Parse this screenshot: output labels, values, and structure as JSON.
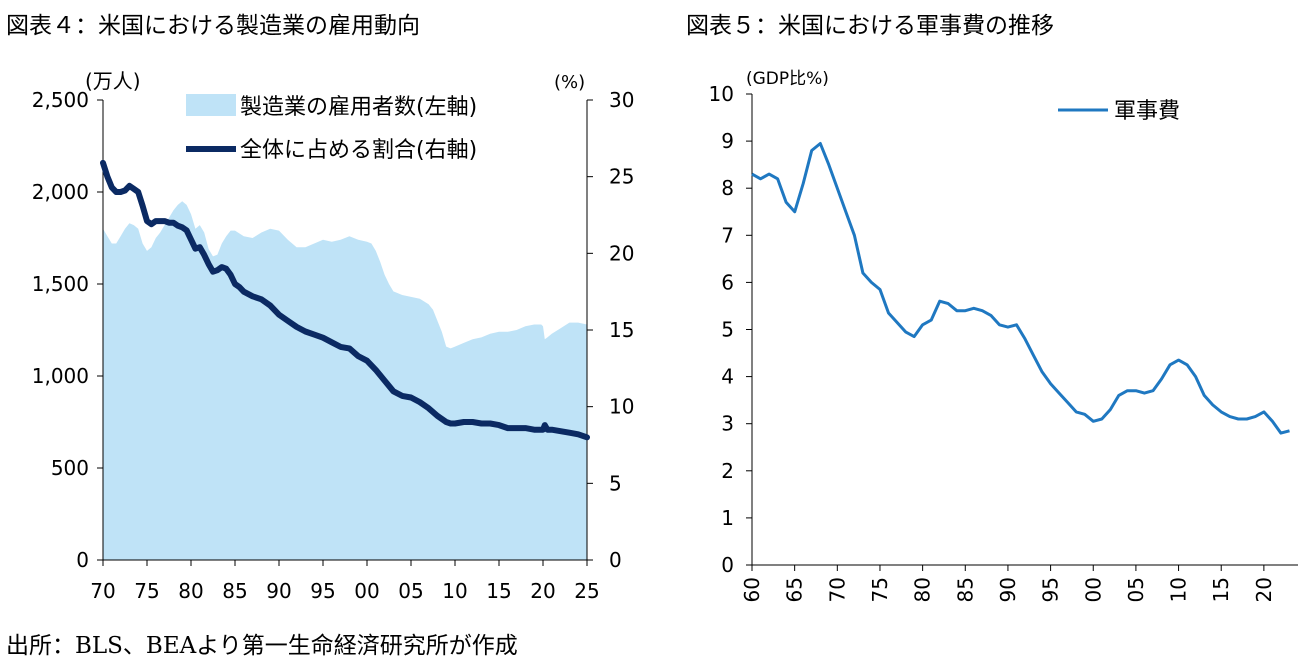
{
  "source_note": "出所：BLS、BEAより第一生命経済研究所が作成",
  "colors": {
    "employment_area": "#bfe3f7",
    "share_line": "#0b2a63",
    "military_line": "#1f78c1"
  },
  "chart_data": [
    {
      "id": "fig4",
      "type": "area+line",
      "title": "図表４：米国における製造業の雇用動向",
      "x_tick_labels": [
        "70",
        "75",
        "80",
        "85",
        "90",
        "95",
        "00",
        "05",
        "10",
        "15",
        "20",
        "25"
      ],
      "x_range": [
        1970,
        2025
      ],
      "y_left": {
        "label": "(万人)",
        "range": [
          0,
          2500
        ],
        "tick_labels": [
          "0",
          "500",
          "1,000",
          "1,500",
          "2,000",
          "2,500"
        ],
        "ticks": [
          0,
          500,
          1000,
          1500,
          2000,
          2500
        ]
      },
      "y_right": {
        "label": "(%)",
        "range": [
          0,
          30
        ],
        "tick_labels": [
          "0",
          "5",
          "10",
          "15",
          "20",
          "25",
          "30"
        ],
        "ticks": [
          0,
          5,
          10,
          15,
          20,
          25,
          30
        ]
      },
      "legend": [
        "製造業の雇用者数(左軸)",
        "全体に占める割合(右軸)"
      ],
      "series": [
        {
          "name": "製造業の雇用者数(左軸)",
          "axis": "left",
          "style": "area",
          "x": [
            1970,
            1970.5,
            1971,
            1971.5,
            1972,
            1972.5,
            1973,
            1973.5,
            1974,
            1974.5,
            1975,
            1975.5,
            1976,
            1976.5,
            1977,
            1977.5,
            1978,
            1978.5,
            1979,
            1979.5,
            1980,
            1980.5,
            1981,
            1981.5,
            1982,
            1982.5,
            1983,
            1983.5,
            1984,
            1984.5,
            1985,
            1986,
            1987,
            1988,
            1989,
            1990,
            1991,
            1992,
            1993,
            1994,
            1995,
            1996,
            1997,
            1998,
            1999,
            2000,
            2000.5,
            2001,
            2001.5,
            2002,
            2002.5,
            2003,
            2004,
            2005,
            2006,
            2007,
            2007.5,
            2008,
            2008.5,
            2009,
            2009.5,
            2010,
            2011,
            2012,
            2013,
            2014,
            2015,
            2016,
            2017,
            2018,
            2019,
            2019.8,
            2020,
            2020.2,
            2020.5,
            2021,
            2022,
            2023,
            2024,
            2025
          ],
          "y": [
            1800,
            1760,
            1720,
            1720,
            1760,
            1800,
            1830,
            1820,
            1800,
            1720,
            1680,
            1700,
            1750,
            1780,
            1820,
            1860,
            1900,
            1930,
            1950,
            1930,
            1880,
            1800,
            1820,
            1780,
            1690,
            1650,
            1660,
            1720,
            1760,
            1790,
            1790,
            1760,
            1750,
            1780,
            1800,
            1790,
            1740,
            1700,
            1700,
            1720,
            1740,
            1730,
            1740,
            1760,
            1740,
            1730,
            1720,
            1680,
            1620,
            1550,
            1500,
            1460,
            1440,
            1430,
            1420,
            1390,
            1360,
            1300,
            1240,
            1160,
            1150,
            1160,
            1180,
            1200,
            1210,
            1230,
            1240,
            1240,
            1250,
            1270,
            1280,
            1280,
            1270,
            1200,
            1210,
            1230,
            1260,
            1290,
            1290,
            1280
          ]
        },
        {
          "name": "全体に占める割合(右軸)",
          "axis": "right",
          "style": "line",
          "x": [
            1970,
            1970.5,
            1971,
            1971.5,
            1972,
            1972.5,
            1973,
            1973.5,
            1974,
            1974.5,
            1975,
            1975.5,
            1976,
            1976.5,
            1977,
            1977.5,
            1978,
            1978.5,
            1979,
            1979.5,
            1980,
            1980.5,
            1981,
            1981.5,
            1982,
            1982.5,
            1983,
            1983.5,
            1984,
            1984.5,
            1985,
            1985.5,
            1986,
            1987,
            1988,
            1989,
            1990,
            1991,
            1992,
            1993,
            1994,
            1995,
            1996,
            1997,
            1998,
            1999,
            2000,
            2001,
            2002,
            2003,
            2004,
            2005,
            2006,
            2007,
            2008,
            2009,
            2009.5,
            2010,
            2011,
            2012,
            2013,
            2014,
            2015,
            2016,
            2017,
            2018,
            2019,
            2020,
            2020.2,
            2020.5,
            2021,
            2022,
            2023,
            2024,
            2025
          ],
          "y": [
            25.9,
            25.0,
            24.3,
            24.0,
            24.0,
            24.1,
            24.4,
            24.2,
            24.0,
            23.1,
            22.1,
            21.9,
            22.1,
            22.1,
            22.1,
            22.0,
            22.0,
            21.8,
            21.7,
            21.5,
            20.9,
            20.3,
            20.4,
            19.9,
            19.3,
            18.8,
            18.9,
            19.1,
            19.0,
            18.6,
            18.0,
            17.8,
            17.5,
            17.2,
            17.0,
            16.6,
            16.0,
            15.6,
            15.2,
            14.9,
            14.7,
            14.5,
            14.2,
            13.9,
            13.8,
            13.3,
            13.0,
            12.4,
            11.7,
            11.0,
            10.7,
            10.6,
            10.3,
            9.9,
            9.4,
            9.0,
            8.9,
            8.9,
            9.0,
            9.0,
            8.9,
            8.9,
            8.8,
            8.6,
            8.6,
            8.6,
            8.5,
            8.5,
            8.8,
            8.5,
            8.5,
            8.4,
            8.3,
            8.2,
            8.0
          ]
        }
      ]
    },
    {
      "id": "fig5",
      "type": "line",
      "title": "図表５：米国における軍事費の推移",
      "x_tick_labels": [
        "60",
        "65",
        "70",
        "75",
        "80",
        "85",
        "90",
        "95",
        "00",
        "05",
        "10",
        "15",
        "20"
      ],
      "x_range": [
        1960,
        2024
      ],
      "y": {
        "label": "(GDP比%)",
        "range": [
          0,
          10
        ],
        "tick_labels": [
          "0",
          "1",
          "2",
          "3",
          "4",
          "5",
          "6",
          "7",
          "8",
          "9",
          "10"
        ],
        "ticks": [
          0,
          1,
          2,
          3,
          4,
          5,
          6,
          7,
          8,
          9,
          10
        ]
      },
      "legend": [
        "軍事費"
      ],
      "series": [
        {
          "name": "軍事費",
          "x": [
            1960,
            1961,
            1962,
            1963,
            1964,
            1965,
            1966,
            1967,
            1968,
            1969,
            1970,
            1971,
            1972,
            1973,
            1974,
            1975,
            1976,
            1977,
            1978,
            1979,
            1980,
            1981,
            1982,
            1983,
            1984,
            1985,
            1986,
            1987,
            1988,
            1989,
            1990,
            1991,
            1992,
            1993,
            1994,
            1995,
            1996,
            1997,
            1998,
            1999,
            2000,
            2001,
            2002,
            2003,
            2004,
            2005,
            2006,
            2007,
            2008,
            2009,
            2010,
            2011,
            2012,
            2013,
            2014,
            2015,
            2016,
            2017,
            2018,
            2019,
            2020,
            2021,
            2022,
            2023
          ],
          "y": [
            8.3,
            8.2,
            8.3,
            8.2,
            7.7,
            7.5,
            8.1,
            8.8,
            8.95,
            8.5,
            8.0,
            7.5,
            7.0,
            6.2,
            6.0,
            5.85,
            5.35,
            5.15,
            4.95,
            4.85,
            5.1,
            5.2,
            5.6,
            5.55,
            5.4,
            5.4,
            5.45,
            5.4,
            5.3,
            5.1,
            5.05,
            5.1,
            4.8,
            4.45,
            4.1,
            3.85,
            3.65,
            3.45,
            3.25,
            3.2,
            3.05,
            3.1,
            3.3,
            3.6,
            3.7,
            3.7,
            3.65,
            3.7,
            3.95,
            4.25,
            4.35,
            4.25,
            4.0,
            3.6,
            3.4,
            3.25,
            3.15,
            3.1,
            3.1,
            3.15,
            3.25,
            3.05,
            2.8,
            2.85
          ]
        }
      ]
    }
  ]
}
